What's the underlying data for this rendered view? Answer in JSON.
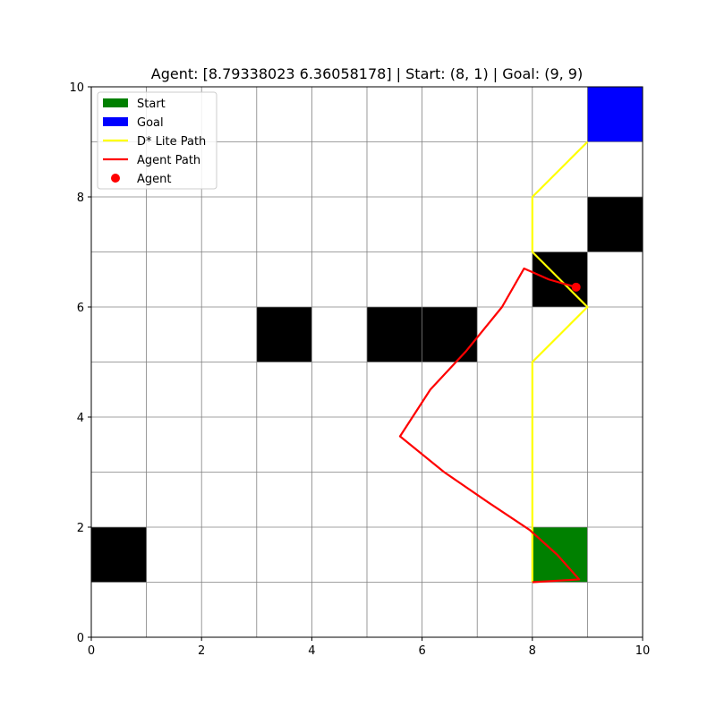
{
  "chart_data": {
    "type": "grid-path",
    "title": "Agent: [8.79338023 6.36058178] | Start: (8, 1) | Goal: (9, 9)",
    "xlim": [
      0,
      10
    ],
    "ylim": [
      0,
      10
    ],
    "grid": true,
    "x_ticks": [
      "0",
      "2",
      "4",
      "6",
      "8",
      "10"
    ],
    "y_ticks": [
      "0",
      "2",
      "4",
      "6",
      "8",
      "10"
    ],
    "x_tick_values": [
      0,
      2,
      4,
      6,
      8,
      10
    ],
    "y_tick_values": [
      0,
      2,
      4,
      6,
      8,
      10
    ],
    "obstacles": [
      {
        "x": 0,
        "y": 1
      },
      {
        "x": 3,
        "y": 5
      },
      {
        "x": 5,
        "y": 5
      },
      {
        "x": 6,
        "y": 5
      },
      {
        "x": 8,
        "y": 6
      },
      {
        "x": 9,
        "y": 7
      }
    ],
    "start_cell": {
      "x": 8,
      "y": 1
    },
    "goal_cell": {
      "x": 9,
      "y": 9
    },
    "dstar_path": [
      [
        8,
        1
      ],
      [
        8,
        5
      ],
      [
        9,
        6
      ],
      [
        8,
        7
      ],
      [
        8,
        8
      ],
      [
        9,
        9
      ]
    ],
    "agent_path": [
      [
        8.0,
        1.0
      ],
      [
        8.85,
        1.05
      ],
      [
        8.45,
        1.5
      ],
      [
        7.95,
        1.95
      ],
      [
        7.2,
        2.45
      ],
      [
        6.4,
        3.0
      ],
      [
        5.6,
        3.65
      ],
      [
        6.15,
        4.5
      ],
      [
        6.8,
        5.2
      ],
      [
        7.45,
        6.0
      ],
      [
        7.85,
        6.7
      ],
      [
        8.3,
        6.5
      ],
      [
        8.79,
        6.36
      ]
    ],
    "agent_position": [
      8.79338023,
      6.36058178
    ],
    "colors": {
      "start": "#008000",
      "goal": "#0000ff",
      "obstacle": "#000000",
      "dstar_path": "#ffff00",
      "agent_path": "#ff0000",
      "agent": "#ff0000",
      "grid": "#808080"
    },
    "legend": {
      "placement": "upper-left",
      "entries": [
        {
          "label": "Start",
          "kind": "patch",
          "color_key": "start"
        },
        {
          "label": "Goal",
          "kind": "patch",
          "color_key": "goal"
        },
        {
          "label": "D* Lite Path",
          "kind": "line",
          "color_key": "dstar_path"
        },
        {
          "label": "Agent Path",
          "kind": "line",
          "color_key": "agent_path"
        },
        {
          "label": "Agent",
          "kind": "marker",
          "color_key": "agent"
        }
      ]
    }
  }
}
